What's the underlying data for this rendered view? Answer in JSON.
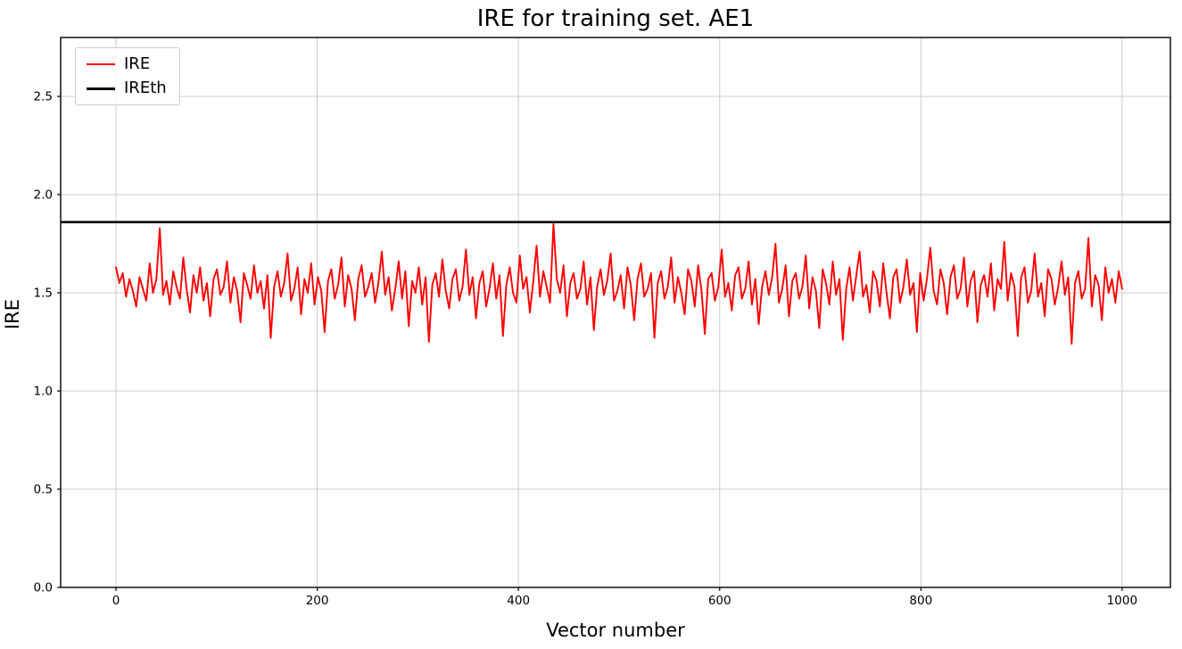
{
  "title": "IRE for training set. AE1",
  "chart_data": {
    "type": "line",
    "title": "IRE for training set. AE1",
    "xlabel": "Vector number",
    "ylabel": "IRE",
    "xlim": [
      -55,
      1048
    ],
    "ylim": [
      0,
      2.8
    ],
    "x_ticks": [
      0,
      200,
      400,
      600,
      800,
      1000
    ],
    "y_ticks": [
      0.0,
      0.5,
      1.0,
      1.5,
      2.0,
      2.5
    ],
    "grid": true,
    "grid_color": "#cccccc",
    "frame_color": "#000000",
    "legend_position": "upper left",
    "series": [
      {
        "name": "IRE",
        "type": "line",
        "color": "#ff0000",
        "x_start": 0,
        "x_end": 1000,
        "values": [
          1.63,
          1.55,
          1.6,
          1.48,
          1.57,
          1.51,
          1.43,
          1.58,
          1.52,
          1.46,
          1.65,
          1.5,
          1.57,
          1.83,
          1.49,
          1.56,
          1.44,
          1.61,
          1.53,
          1.47,
          1.68,
          1.52,
          1.4,
          1.59,
          1.5,
          1.63,
          1.46,
          1.55,
          1.38,
          1.57,
          1.62,
          1.49,
          1.53,
          1.66,
          1.45,
          1.58,
          1.51,
          1.35,
          1.6,
          1.54,
          1.47,
          1.64,
          1.5,
          1.56,
          1.42,
          1.59,
          1.27,
          1.53,
          1.61,
          1.48,
          1.55,
          1.7,
          1.46,
          1.52,
          1.63,
          1.39,
          1.57,
          1.5,
          1.65,
          1.44,
          1.58,
          1.51,
          1.3,
          1.56,
          1.62,
          1.47,
          1.54,
          1.68,
          1.43,
          1.59,
          1.52,
          1.36,
          1.57,
          1.64,
          1.48,
          1.53,
          1.6,
          1.45,
          1.55,
          1.71,
          1.49,
          1.58,
          1.41,
          1.52,
          1.66,
          1.47,
          1.61,
          1.33,
          1.56,
          1.5,
          1.63,
          1.44,
          1.58,
          1.25,
          1.54,
          1.6,
          1.48,
          1.67,
          1.51,
          1.42,
          1.57,
          1.62,
          1.46,
          1.53,
          1.72,
          1.49,
          1.58,
          1.37,
          1.55,
          1.61,
          1.43,
          1.52,
          1.65,
          1.47,
          1.59,
          1.28,
          1.54,
          1.63,
          1.5,
          1.45,
          1.69,
          1.52,
          1.58,
          1.4,
          1.56,
          1.74,
          1.48,
          1.61,
          1.53,
          1.45,
          1.85,
          1.57,
          1.5,
          1.64,
          1.38,
          1.55,
          1.6,
          1.47,
          1.52,
          1.66,
          1.44,
          1.58,
          1.31,
          1.53,
          1.62,
          1.49,
          1.56,
          1.7,
          1.46,
          1.51,
          1.59,
          1.42,
          1.63,
          1.54,
          1.36,
          1.57,
          1.65,
          1.48,
          1.52,
          1.6,
          1.27,
          1.55,
          1.61,
          1.47,
          1.53,
          1.68,
          1.45,
          1.58,
          1.5,
          1.39,
          1.62,
          1.56,
          1.43,
          1.64,
          1.51,
          1.29,
          1.57,
          1.6,
          1.46,
          1.53,
          1.72,
          1.48,
          1.55,
          1.41,
          1.59,
          1.63,
          1.47,
          1.52,
          1.66,
          1.44,
          1.57,
          1.34,
          1.53,
          1.61,
          1.49,
          1.58,
          1.75,
          1.45,
          1.52,
          1.64,
          1.38,
          1.56,
          1.6,
          1.47,
          1.53,
          1.69,
          1.42,
          1.58,
          1.51,
          1.32,
          1.62,
          1.55,
          1.44,
          1.66,
          1.49,
          1.57,
          1.26,
          1.52,
          1.63,
          1.46,
          1.59,
          1.71,
          1.48,
          1.54,
          1.4,
          1.61,
          1.56,
          1.43,
          1.65,
          1.5,
          1.37,
          1.58,
          1.62,
          1.45,
          1.53,
          1.67,
          1.49,
          1.55,
          1.3,
          1.6,
          1.46,
          1.57,
          1.73,
          1.51,
          1.44,
          1.62,
          1.55,
          1.39,
          1.58,
          1.64,
          1.47,
          1.52,
          1.68,
          1.43,
          1.56,
          1.61,
          1.35,
          1.54,
          1.59,
          1.48,
          1.65,
          1.41,
          1.57,
          1.52,
          1.76,
          1.46,
          1.6,
          1.53,
          1.28,
          1.58,
          1.63,
          1.45,
          1.51,
          1.7,
          1.48,
          1.55,
          1.38,
          1.62,
          1.57,
          1.44,
          1.53,
          1.66,
          1.49,
          1.58,
          1.24,
          1.55,
          1.61,
          1.47,
          1.52,
          1.78,
          1.43,
          1.59,
          1.54,
          1.36,
          1.63,
          1.5,
          1.57,
          1.45,
          1.61,
          1.52
        ]
      },
      {
        "name": "IREth",
        "type": "hline",
        "color": "#000000",
        "value": 1.86
      }
    ]
  },
  "legend": {
    "entries": [
      {
        "label": "IRE",
        "color": "#ff0000",
        "weight": 2
      },
      {
        "label": "IREth",
        "color": "#000000",
        "weight": 3
      }
    ]
  }
}
